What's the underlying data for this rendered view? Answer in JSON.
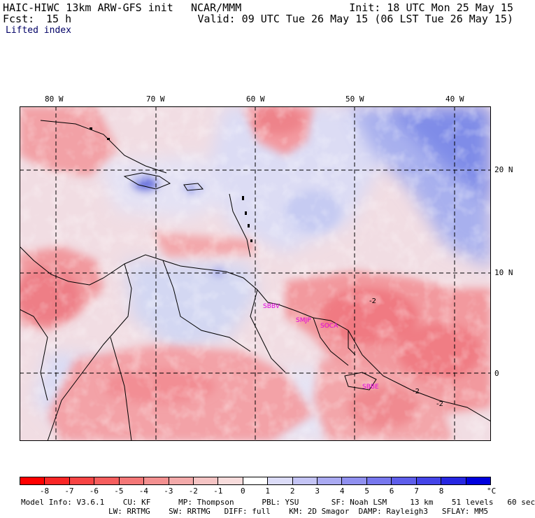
{
  "header": {
    "model_title": "HAIC-HIWC 13km ARW-GFS init",
    "org": "NCAR/MMM",
    "init": "Init: 18 UTC Mon 25 May 15",
    "fcst_label": "Fcst:",
    "fcst_value": "15 h",
    "valid": "Valid: 09 UTC Tue 26 May 15 (06 LST Tue 26 May 15)",
    "field": "Lifted index"
  },
  "map": {
    "longitude_ticks": [
      {
        "label": "80 W",
        "lon": -80
      },
      {
        "label": "70 W",
        "lon": -70
      },
      {
        "label": "60 W",
        "lon": -60
      },
      {
        "label": "50 W",
        "lon": -50
      },
      {
        "label": "40 W",
        "lon": -40
      }
    ],
    "latitude_ticks": [
      {
        "label": "20 N",
        "lat": 20
      },
      {
        "label": "10 N",
        "lat": 10
      },
      {
        "label": "0",
        "lat": 0
      }
    ],
    "stations": [
      "SBBV",
      "SMJP",
      "SOCA",
      "SBBE"
    ],
    "contour_labels": [
      "-2",
      "-2",
      "-2"
    ]
  },
  "colorbar": {
    "unit": "°C",
    "labels": [
      "-8",
      "-7",
      "-6",
      "-5",
      "-4",
      "-3",
      "-2",
      "-1",
      "0",
      "1",
      "2",
      "3",
      "4",
      "5",
      "6",
      "7",
      "8"
    ],
    "colors": [
      "#ff0000",
      "#fa2626",
      "#f84444",
      "#f65e5e",
      "#f47777",
      "#f39090",
      "#f3aaaa",
      "#f5c4c4",
      "#f8dcdc",
      "#ffffff",
      "#dcdcf8",
      "#c4c4f5",
      "#aaaaf2",
      "#9090f0",
      "#7777ee",
      "#5e5eeb",
      "#4444e8",
      "#2626e2",
      "#0000dd"
    ]
  },
  "footer": {
    "line1": "Model Info: V3.6.1    CU: KF      MP: Thompson      PBL: YSU       SF: Noah LSM     13 km    51 levels   60 sec",
    "line2": "LW: RRTMG    SW: RRTMG   DIFF: full    KM: 2D Smagor  DAMP: Rayleigh3   SFLAY: MM5"
  }
}
